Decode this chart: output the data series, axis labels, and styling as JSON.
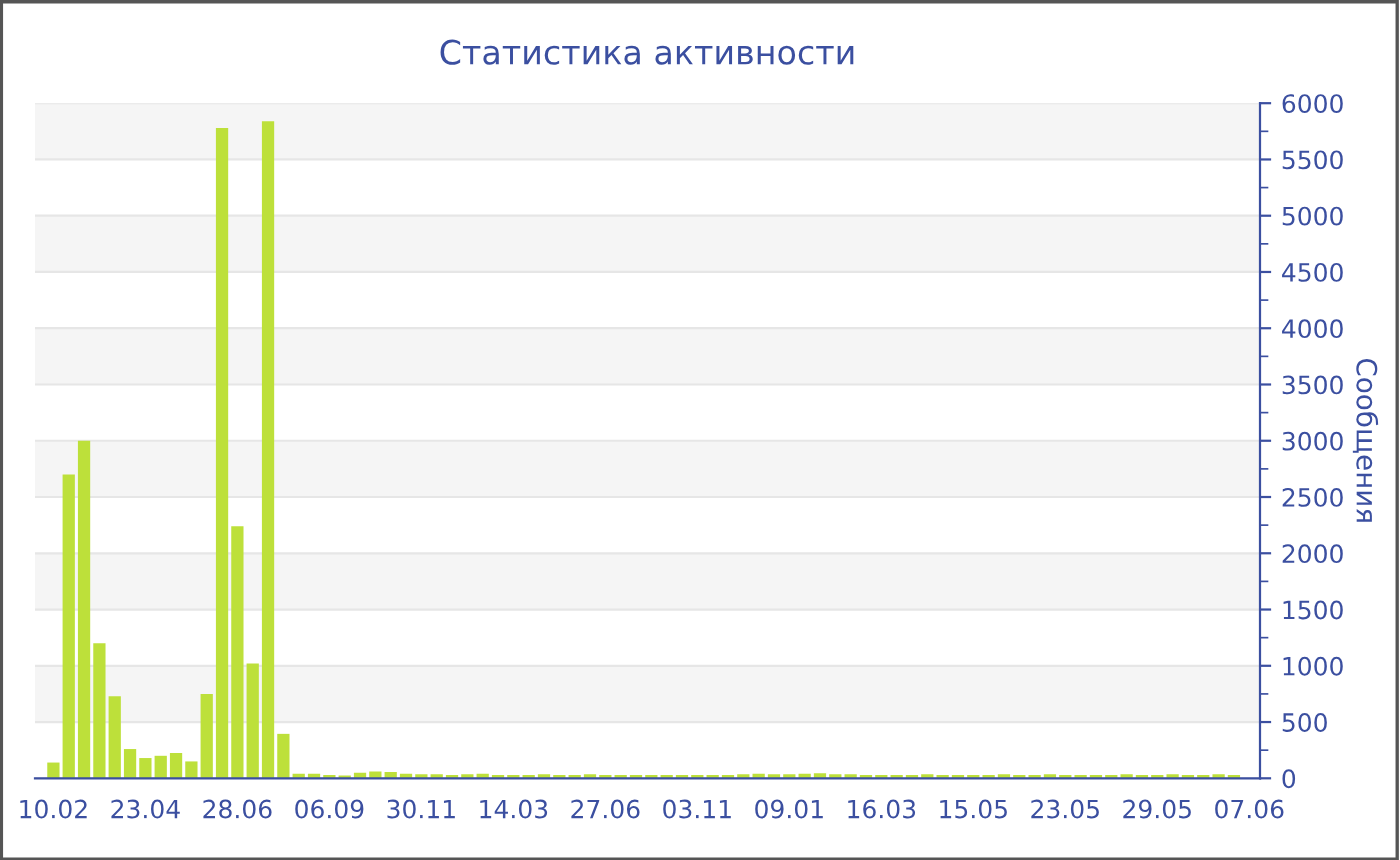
{
  "chart_data": {
    "type": "bar",
    "title": "Статистика активности",
    "ylabel": "Сообщения",
    "categories": [
      "10.02",
      null,
      null,
      null,
      null,
      null,
      "23.04",
      null,
      null,
      null,
      null,
      null,
      "28.06",
      null,
      null,
      null,
      null,
      null,
      "06.09",
      null,
      null,
      null,
      null,
      null,
      "30.11",
      null,
      null,
      null,
      null,
      null,
      "14.03",
      null,
      null,
      null,
      null,
      null,
      "27.06",
      null,
      null,
      null,
      null,
      null,
      "03.11",
      null,
      null,
      null,
      null,
      null,
      "09.01",
      null,
      null,
      null,
      null,
      null,
      "16.03",
      null,
      null,
      null,
      null,
      null,
      "15.05",
      null,
      null,
      null,
      null,
      null,
      "23.05",
      null,
      null,
      null,
      null,
      null,
      "29.05",
      null,
      null,
      null,
      null,
      null,
      "07.06"
    ],
    "values": [
      140,
      2700,
      3000,
      1200,
      730,
      260,
      180,
      200,
      225,
      150,
      750,
      5780,
      2240,
      1020,
      5840,
      395,
      40,
      40,
      30,
      25,
      50,
      60,
      55,
      40,
      35,
      35,
      30,
      35,
      40,
      30,
      30,
      30,
      35,
      30,
      30,
      35,
      30,
      30,
      30,
      30,
      30,
      30,
      30,
      30,
      30,
      35,
      40,
      35,
      35,
      40,
      45,
      35,
      35,
      30,
      30,
      30,
      30,
      35,
      30,
      30,
      30,
      30,
      35,
      30,
      30,
      35,
      30,
      30,
      30,
      30,
      35,
      30,
      30,
      35,
      30,
      30,
      35,
      30,
      0
    ],
    "color": "#bde03a",
    "ylim": [
      0,
      6000
    ],
    "yticks": [
      0,
      500,
      1000,
      1500,
      2000,
      2500,
      3000,
      3500,
      4000,
      4500,
      5000,
      5500,
      6000
    ],
    "grid": "y",
    "legend": false
  }
}
